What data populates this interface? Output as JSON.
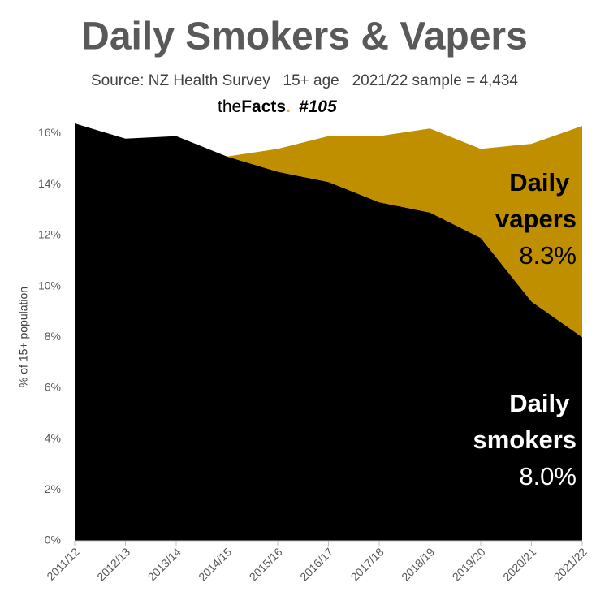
{
  "chart_data": {
    "type": "stacked-area",
    "title": "Daily Smokers & Vapers",
    "subtitle": "Source: NZ Health Survey   15+ age   2021/22 sample = 4,434",
    "brand": {
      "prefix": "the",
      "name": "Facts",
      "dot": ".",
      "issue": "#105"
    },
    "y_label": "% of 15+ population",
    "categories": [
      "2011/12",
      "2012/13",
      "2013/14",
      "2014/15",
      "2015/16",
      "2016/17",
      "2017/18",
      "2018/19",
      "2019/20",
      "2020/21",
      "2021/22"
    ],
    "series": [
      {
        "name": "Daily smokers",
        "color": "#000000",
        "label_color": "#ffffff",
        "values": [
          16.4,
          15.8,
          15.9,
          15.1,
          14.5,
          14.1,
          13.3,
          12.9,
          11.9,
          9.4,
          8.0
        ],
        "value_labels": [
          null,
          null,
          null,
          null,
          null,
          null,
          null,
          null,
          null,
          null,
          "8.0%"
        ]
      },
      {
        "name": "Daily vapers",
        "color": "#bf8f00",
        "label_color": "#000000",
        "values": [
          null,
          null,
          null,
          0,
          0.9,
          1.8,
          2.6,
          3.3,
          3.5,
          6.2,
          8.3
        ],
        "value_labels": [
          null,
          null,
          null,
          null,
          null,
          null,
          null,
          null,
          null,
          null,
          "8.3%"
        ]
      }
    ],
    "ylim": [
      0,
      16.4
    ],
    "yticks": [
      {
        "value": 0,
        "label": "0%"
      },
      {
        "value": 2,
        "label": "2%"
      },
      {
        "value": 4,
        "label": "4%"
      },
      {
        "value": 6,
        "label": "6%"
      },
      {
        "value": 8,
        "label": "8%"
      },
      {
        "value": 10,
        "label": "10%"
      },
      {
        "value": 12,
        "label": "12%"
      },
      {
        "value": 14,
        "label": "14%"
      },
      {
        "value": 16,
        "label": "16%"
      }
    ],
    "grid": false
  }
}
